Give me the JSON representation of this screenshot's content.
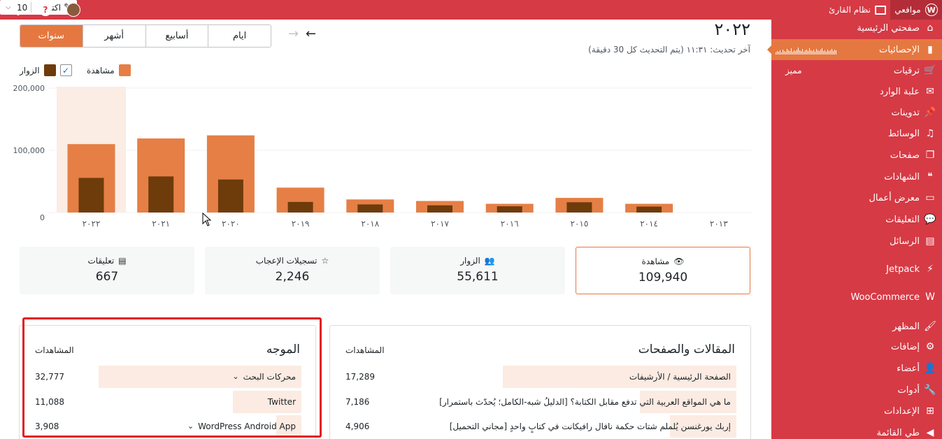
{
  "topbar": {
    "my_sites": "موافعي",
    "reader": "نظام القارئ",
    "write": "اكتب",
    "count_select": "10",
    "help": "?"
  },
  "sidebar": {
    "items": [
      {
        "label": "صفحتي الرئيسية",
        "icon": "home-icon",
        "glyph": "⌂"
      },
      {
        "label": "الإحصائيات",
        "icon": "stats-icon",
        "glyph": "▮",
        "active": true
      },
      {
        "label": "ترقيات",
        "icon": "cart-icon",
        "glyph": "🛒",
        "badge": "مميز"
      },
      {
        "label": "علبة الوارد",
        "icon": "mail-icon",
        "glyph": "✉"
      },
      {
        "label": "تدوينات",
        "icon": "pin-icon",
        "glyph": "📌"
      },
      {
        "label": "الوسائط",
        "icon": "media-icon",
        "glyph": "♫"
      },
      {
        "label": "صفحات",
        "icon": "pages-icon",
        "glyph": "❐"
      },
      {
        "label": "الشهادات",
        "icon": "testimonial-icon",
        "glyph": "❝"
      },
      {
        "label": "معرض أعمال",
        "icon": "portfolio-icon",
        "glyph": "▭"
      },
      {
        "label": "التعليقات",
        "icon": "comment-icon",
        "glyph": "💬"
      },
      {
        "label": "الرسائل",
        "icon": "feedback-icon",
        "glyph": "▤"
      },
      {
        "label": "Jetpack",
        "icon": "jetpack-icon",
        "glyph": "⚡"
      },
      {
        "label": "WooCommerce",
        "icon": "woo-icon",
        "glyph": "W"
      },
      {
        "label": "المظهر",
        "icon": "brush-icon",
        "glyph": "🖌"
      },
      {
        "label": "إضافات",
        "icon": "plugin-icon",
        "glyph": "⚙"
      },
      {
        "label": "أعضاء",
        "icon": "user-icon",
        "glyph": "👤"
      },
      {
        "label": "أدوات",
        "icon": "wrench-icon",
        "glyph": "🔧"
      },
      {
        "label": "الإعدادات",
        "icon": "settings-icon",
        "glyph": "⊞"
      },
      {
        "label": "طي القائمة",
        "icon": "collapse-icon",
        "glyph": "◀"
      }
    ]
  },
  "header": {
    "year": "٢٠٢٢",
    "last_update": "آخر تحديث: ١١:٣١ (يتم التحديث كل 30 دقيقة)"
  },
  "period_tabs": [
    "ايام",
    "أسابيع",
    "أشهر",
    "سنوات"
  ],
  "legend": {
    "views": "مشاهدة",
    "visitors": "الزوار"
  },
  "chart_data": {
    "type": "bar",
    "categories": [
      "٢٠٢٢",
      "٢٠٢١",
      "٢٠٢٠",
      "٢٠١٩",
      "٢٠١٨",
      "٢٠١٧",
      "٢٠١٦",
      "٢٠١٥",
      "٢٠١٤",
      "٢٠١٣"
    ],
    "series": [
      {
        "name": "مشاهدة",
        "color": "#e57f45",
        "values": [
          109940,
          119000,
          124000,
          40000,
          21000,
          18500,
          14000,
          23500,
          14000,
          0
        ]
      },
      {
        "name": "الزوار",
        "color": "#6e3b0b",
        "values": [
          55611,
          58000,
          53000,
          17000,
          13000,
          11500,
          10000,
          16500,
          9500,
          0
        ]
      }
    ],
    "yticks": [
      "0",
      "100,000",
      "200,000"
    ],
    "ylim": [
      0,
      200000
    ],
    "selected_category": "٢٠٢٢",
    "grid": true
  },
  "stats": [
    {
      "label": "مشاهدة",
      "value": "109,940",
      "icon": "eye-icon",
      "glyph": "👁",
      "selected": true
    },
    {
      "label": "الزوار",
      "value": "55,611",
      "icon": "people-icon",
      "glyph": "👥"
    },
    {
      "label": "تسجيلات الإعجاب",
      "value": "2,246",
      "icon": "star-icon",
      "glyph": "☆"
    },
    {
      "label": "تعليقات",
      "value": "667",
      "icon": "comment-box-icon",
      "glyph": "▤"
    }
  ],
  "posts_panel": {
    "title": "المقالات والصفحات",
    "col": "المشاهدات",
    "rows": [
      {
        "label": "الصفحة الرئيسية / الأرشيفات",
        "value": "17,289",
        "share": 0.7
      },
      {
        "label": "ما هي المواقع العربية التي تدفع مقابل الكتابة؟ [الدليلُ شبه-الكامل؛ يُحدّث باستمرار]",
        "value": "7,186",
        "share": 0.29
      },
      {
        "label": "إربك يورغنسن يُلملم شتات حكمة نافال رافيكانت في كتابٍ واحدٍ [مجاني التحميل]",
        "value": "4,906",
        "share": 0.2
      }
    ]
  },
  "referrers_panel": {
    "title": "الموجه",
    "col": "المشاهدات",
    "rows": [
      {
        "label": "محركات البحث",
        "value": "32,777",
        "share": 0.89,
        "expand": true
      },
      {
        "label": "Twitter",
        "value": "11,088",
        "share": 0.3
      },
      {
        "label": "WordPress Android App",
        "value": "3,908",
        "share": 0.11,
        "expand": true
      }
    ]
  }
}
